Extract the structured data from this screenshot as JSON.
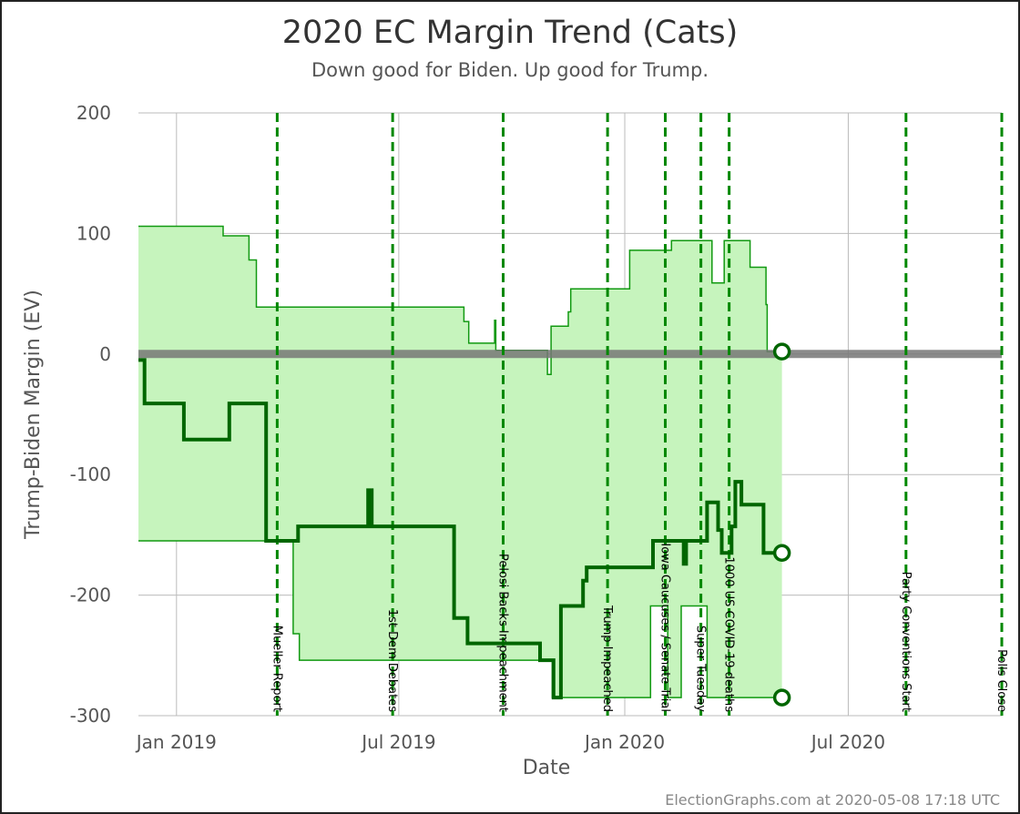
{
  "chart_data": {
    "type": "line",
    "title": "2020 EC Margin Trend (Cats)",
    "subtitle": "Down good for Biden. Up good for Trump.",
    "xlabel": "Date",
    "ylabel": "Trump-Biden Margin (EV)",
    "credit": "ElectionGraphs.com at 2020-05-08 17:18 UTC",
    "xlim": [
      "2018-12-01",
      "2020-11-03"
    ],
    "ylim": [
      -300,
      200
    ],
    "yticks": [
      200,
      100,
      0,
      -100,
      -200,
      -300
    ],
    "ytick_labels": [
      "200",
      "100",
      "0",
      "-100",
      "-200",
      "-300"
    ],
    "xticks": [
      "2019-01-01",
      "2019-07-01",
      "2020-01-01",
      "2020-07-01"
    ],
    "xtick_labels": [
      "Jan 2019",
      "Jul 2019",
      "Jan 2020",
      "Jul 2020"
    ],
    "grid": true,
    "colors": {
      "band_fill": "#c6f4bd",
      "band_edge": "#119911",
      "line": "#006600",
      "event": "#008800",
      "zero_line": "#777777",
      "grid": "#bbbbbb"
    },
    "events": [
      {
        "date": "2019-03-24",
        "label": "Mueller Report"
      },
      {
        "date": "2019-06-26",
        "label": "1st Dem Debates"
      },
      {
        "date": "2019-09-24",
        "label": "Pelosi Backs Impeachment"
      },
      {
        "date": "2019-12-18",
        "label": "Trump Impeached"
      },
      {
        "date": "2020-02-03",
        "label": "Iowa Caucuses / Senate Trial"
      },
      {
        "date": "2020-03-03",
        "label": "Super Tuesday"
      },
      {
        "date": "2020-03-26",
        "label": "1000 US COVID-19 deaths"
      },
      {
        "date": "2020-08-17",
        "label": "Party Conventions Start"
      },
      {
        "date": "2020-11-03",
        "label": "Polls Close"
      }
    ],
    "series": [
      {
        "role": "upper_bound",
        "points": [
          [
            "2018-12-01",
            106
          ],
          [
            "2019-02-08",
            106
          ],
          [
            "2019-02-08",
            98
          ],
          [
            "2019-03-01",
            98
          ],
          [
            "2019-03-01",
            78
          ],
          [
            "2019-03-07",
            78
          ],
          [
            "2019-03-07",
            39
          ],
          [
            "2019-08-23",
            39
          ],
          [
            "2019-08-23",
            27
          ],
          [
            "2019-08-27",
            27
          ],
          [
            "2019-08-27",
            9
          ],
          [
            "2019-09-17",
            9
          ],
          [
            "2019-09-17",
            28
          ],
          [
            "2019-09-18",
            28
          ],
          [
            "2019-09-18",
            3
          ],
          [
            "2019-10-30",
            3
          ],
          [
            "2019-10-30",
            -17
          ],
          [
            "2019-11-02",
            -17
          ],
          [
            "2019-11-02",
            23
          ],
          [
            "2019-11-16",
            23
          ],
          [
            "2019-11-16",
            35
          ],
          [
            "2019-11-18",
            35
          ],
          [
            "2019-11-18",
            54
          ],
          [
            "2020-01-05",
            54
          ],
          [
            "2020-01-05",
            86
          ],
          [
            "2020-02-08",
            86
          ],
          [
            "2020-02-08",
            94
          ],
          [
            "2020-03-12",
            94
          ],
          [
            "2020-03-12",
            59
          ],
          [
            "2020-03-22",
            59
          ],
          [
            "2020-03-22",
            94
          ],
          [
            "2020-04-12",
            94
          ],
          [
            "2020-04-12",
            72
          ],
          [
            "2020-04-25",
            72
          ],
          [
            "2020-04-25",
            41
          ],
          [
            "2020-04-26",
            41
          ],
          [
            "2020-04-26",
            2
          ],
          [
            "2020-05-08",
            2
          ]
        ]
      },
      {
        "role": "lower_bound",
        "points": [
          [
            "2018-12-01",
            -155
          ],
          [
            "2019-04-06",
            -155
          ],
          [
            "2019-04-06",
            -232
          ],
          [
            "2019-04-11",
            -232
          ],
          [
            "2019-04-11",
            -254
          ],
          [
            "2019-11-03",
            -254
          ],
          [
            "2019-11-03",
            -285
          ],
          [
            "2020-01-22",
            -285
          ],
          [
            "2020-01-22",
            -209
          ],
          [
            "2020-02-05",
            -209
          ],
          [
            "2020-02-05",
            -285
          ],
          [
            "2020-02-16",
            -285
          ],
          [
            "2020-02-16",
            -209
          ],
          [
            "2020-03-08",
            -209
          ],
          [
            "2020-03-08",
            -285
          ],
          [
            "2020-05-08",
            -285
          ]
        ]
      },
      {
        "role": "median",
        "points": [
          [
            "2018-12-01",
            -5
          ],
          [
            "2018-12-06",
            -5
          ],
          [
            "2018-12-06",
            -41
          ],
          [
            "2019-01-07",
            -41
          ],
          [
            "2019-01-07",
            -71
          ],
          [
            "2019-02-13",
            -71
          ],
          [
            "2019-02-13",
            -41
          ],
          [
            "2019-03-15",
            -41
          ],
          [
            "2019-03-15",
            -155
          ],
          [
            "2019-04-10",
            -155
          ],
          [
            "2019-04-10",
            -143
          ],
          [
            "2019-06-06",
            -143
          ],
          [
            "2019-06-06",
            -113
          ],
          [
            "2019-06-09",
            -113
          ],
          [
            "2019-06-09",
            -143
          ],
          [
            "2019-08-15",
            -143
          ],
          [
            "2019-08-15",
            -219
          ],
          [
            "2019-08-26",
            -219
          ],
          [
            "2019-08-26",
            -240
          ],
          [
            "2019-10-24",
            -240
          ],
          [
            "2019-10-24",
            -254
          ],
          [
            "2019-11-04",
            -254
          ],
          [
            "2019-11-04",
            -285
          ],
          [
            "2019-11-10",
            -285
          ],
          [
            "2019-11-10",
            -209
          ],
          [
            "2019-11-28",
            -209
          ],
          [
            "2019-11-28",
            -188
          ],
          [
            "2019-12-01",
            -188
          ],
          [
            "2019-12-01",
            -177
          ],
          [
            "2020-01-24",
            -177
          ],
          [
            "2020-01-24",
            -155
          ],
          [
            "2020-02-18",
            -155
          ],
          [
            "2020-02-18",
            -174
          ],
          [
            "2020-02-20",
            -174
          ],
          [
            "2020-02-20",
            -155
          ],
          [
            "2020-03-08",
            -155
          ],
          [
            "2020-03-08",
            -123
          ],
          [
            "2020-03-17",
            -123
          ],
          [
            "2020-03-17",
            -146
          ],
          [
            "2020-03-20",
            -146
          ],
          [
            "2020-03-20",
            -165
          ],
          [
            "2020-03-28",
            -165
          ],
          [
            "2020-03-28",
            -143
          ],
          [
            "2020-03-31",
            -143
          ],
          [
            "2020-03-31",
            -106
          ],
          [
            "2020-04-05",
            -106
          ],
          [
            "2020-04-05",
            -125
          ],
          [
            "2020-04-23",
            -125
          ],
          [
            "2020-04-23",
            -165
          ],
          [
            "2020-05-08",
            -165
          ]
        ]
      }
    ]
  }
}
